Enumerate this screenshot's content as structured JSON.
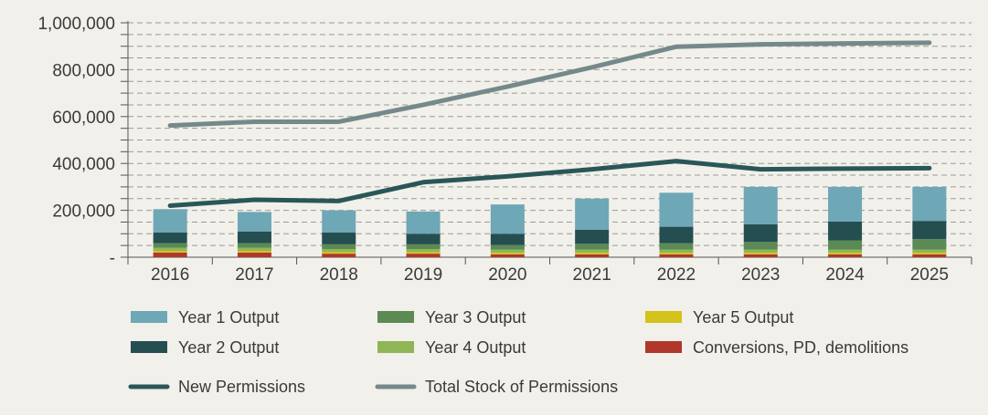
{
  "colors": {
    "background": "#f1f0ea",
    "year1": "#6ea7b6",
    "year2": "#254e51",
    "year3": "#5b8a55",
    "year4": "#8fb656",
    "year5": "#d3c31b",
    "conversions": "#b0372a",
    "new_permissions": "#2a5658",
    "total_stock": "#75898b",
    "grid": "#9a9a9a",
    "axis": "#555555"
  },
  "chart_data": {
    "type": "bar",
    "subtype": "stacked bar with line overlays",
    "title": "",
    "xlabel": "",
    "ylabel": "",
    "ylim": [
      0,
      1000000
    ],
    "grid": "dashed horizontal at every 50,000",
    "legend_placement": "bottom",
    "y_ticks": [
      {
        "value": 1000000,
        "label": "1,000,000"
      },
      {
        "value": 800000,
        "label": "800,000"
      },
      {
        "value": 600000,
        "label": "600,000"
      },
      {
        "value": 400000,
        "label": "400,000"
      },
      {
        "value": 200000,
        "label": "200,000"
      },
      {
        "value": 0,
        "label": "-"
      }
    ],
    "categories": [
      "2016",
      "2017",
      "2018",
      "2019",
      "2020",
      "2021",
      "2022",
      "2023",
      "2024",
      "2025"
    ],
    "bar_series": [
      {
        "name": "Conversions, PD, demolitions",
        "key": "conversions",
        "values": [
          20000,
          20000,
          15000,
          15000,
          12000,
          12000,
          12000,
          12000,
          12000,
          12000
        ]
      },
      {
        "name": "Year 5 Output",
        "key": "year5",
        "values": [
          7000,
          7000,
          7000,
          7000,
          7000,
          7000,
          7000,
          7000,
          7000,
          7000
        ]
      },
      {
        "name": "Year 4 Output",
        "key": "year4",
        "values": [
          13000,
          13000,
          13000,
          13000,
          13000,
          13000,
          13000,
          13000,
          13000,
          13000
        ]
      },
      {
        "name": "Year 3 Output",
        "key": "year3",
        "values": [
          20000,
          20000,
          20000,
          20000,
          20000,
          25000,
          28000,
          33000,
          40000,
          45000
        ]
      },
      {
        "name": "Year 2 Output",
        "key": "year2",
        "values": [
          45000,
          50000,
          50000,
          45000,
          48000,
          60000,
          70000,
          75000,
          80000,
          78000
        ]
      },
      {
        "name": "Year 1 Output",
        "key": "year1",
        "values": [
          100000,
          83000,
          95000,
          95000,
          125000,
          133000,
          145000,
          160000,
          148000,
          145000
        ]
      }
    ],
    "line_series": [
      {
        "name": "New Permissions",
        "key": "new_permissions",
        "values": [
          220000,
          245000,
          240000,
          320000,
          345000,
          375000,
          410000,
          375000,
          378000,
          380000
        ]
      },
      {
        "name": "Total Stock of Permissions",
        "key": "total_stock",
        "values": [
          562000,
          578000,
          578000,
          650000,
          728000,
          810000,
          898000,
          908000,
          912000,
          915000
        ]
      }
    ]
  },
  "legend": [
    {
      "label": "Year 1 Output",
      "key": "year1",
      "kind": "box"
    },
    {
      "label": "Year 3 Output",
      "key": "year3",
      "kind": "box"
    },
    {
      "label": "Year 5 Output",
      "key": "year5",
      "kind": "box"
    },
    {
      "label": "Year 2 Output",
      "key": "year2",
      "kind": "box"
    },
    {
      "label": "Year 4 Output",
      "key": "year4",
      "kind": "box"
    },
    {
      "label": "Conversions, PD, demolitions",
      "key": "conversions",
      "kind": "box"
    },
    {
      "label": "New Permissions",
      "key": "new_permissions",
      "kind": "line"
    },
    {
      "label": "Total Stock of Permissions",
      "key": "total_stock",
      "kind": "line"
    }
  ]
}
